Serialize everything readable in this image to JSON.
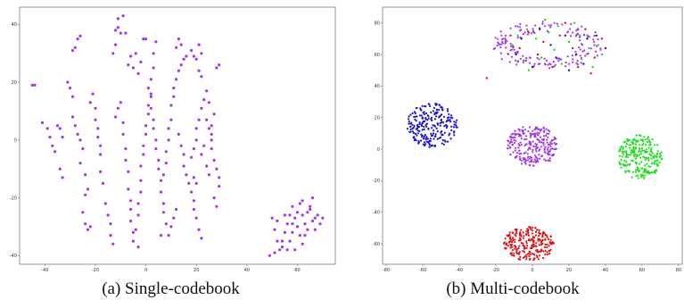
{
  "chart_data": [
    {
      "type": "scatter",
      "title": "",
      "caption": "(a) Single-codebook",
      "xlim": [
        -50,
        75
      ],
      "ylim": [
        -43,
        46
      ],
      "xticks": [
        -40,
        -20,
        0,
        20,
        40,
        60
      ],
      "yticks": [
        -40,
        -20,
        0,
        20,
        40
      ],
      "grid": false,
      "series": [
        {
          "color": "#a335f0",
          "points": [
            [
              -45,
              19
            ],
            [
              -44,
              19
            ],
            [
              -41,
              6
            ],
            [
              -39,
              4
            ],
            [
              -38,
              1
            ],
            [
              -37,
              -2
            ],
            [
              -35,
              5
            ],
            [
              -36,
              -4
            ],
            [
              -34,
              -10
            ],
            [
              -33,
              -13
            ],
            [
              -34,
              4
            ],
            [
              -33,
              1
            ],
            [
              -31,
              20
            ],
            [
              -30,
              18
            ],
            [
              -29,
              15
            ],
            [
              -29,
              31
            ],
            [
              -28,
              32
            ],
            [
              -27,
              35
            ],
            [
              -26,
              36
            ],
            [
              -29,
              8
            ],
            [
              -28,
              5
            ],
            [
              -27,
              2
            ],
            [
              -26,
              0
            ],
            [
              -25,
              -3
            ],
            [
              -26,
              -8
            ],
            [
              -24,
              -12
            ],
            [
              -23,
              -17
            ],
            [
              -24,
              -19
            ],
            [
              -25,
              -25
            ],
            [
              -24,
              -29
            ],
            [
              -23,
              -31
            ],
            [
              -22,
              -30
            ],
            [
              -22,
              13
            ],
            [
              -21,
              16
            ],
            [
              -20,
              11
            ],
            [
              -20,
              7
            ],
            [
              -19,
              4
            ],
            [
              -19,
              1
            ],
            [
              -18,
              -2
            ],
            [
              -18,
              -5
            ],
            [
              -18,
              -11
            ],
            [
              -17,
              -15
            ],
            [
              -16,
              -22
            ],
            [
              -15,
              -26
            ],
            [
              -14,
              -29
            ],
            [
              -14,
              -33
            ],
            [
              -13,
              -36
            ],
            [
              -13,
              30
            ],
            [
              -12,
              33
            ],
            [
              -12,
              38
            ],
            [
              -11,
              42
            ],
            [
              -11,
              39
            ],
            [
              -10,
              37
            ],
            [
              -9,
              43
            ],
            [
              -8,
              37
            ],
            [
              -12,
              8
            ],
            [
              -11,
              11
            ],
            [
              -10,
              13
            ],
            [
              -9,
              6
            ],
            [
              -9,
              2
            ],
            [
              -8,
              -3
            ],
            [
              -8,
              -7
            ],
            [
              -7,
              -11
            ],
            [
              -7,
              -17
            ],
            [
              -6,
              -21
            ],
            [
              -6,
              -24
            ],
            [
              -6,
              -28
            ],
            [
              -5,
              -32
            ],
            [
              -5,
              -35
            ],
            [
              -3,
              -37
            ],
            [
              -4,
              -31
            ],
            [
              -3,
              -26
            ],
            [
              -3,
              -22
            ],
            [
              -2,
              -18
            ],
            [
              -2,
              -14
            ],
            [
              -2,
              -9
            ],
            [
              -1,
              -5
            ],
            [
              -1,
              -2
            ],
            [
              0,
              2
            ],
            [
              0,
              5
            ],
            [
              1,
              9
            ],
            [
              1,
              12
            ],
            [
              2,
              16
            ],
            [
              2,
              21
            ],
            [
              3,
              25
            ],
            [
              3,
              30
            ],
            [
              4,
              34
            ],
            [
              -7,
              26
            ],
            [
              -6,
              29
            ],
            [
              -5,
              25
            ],
            [
              -4,
              30
            ],
            [
              -3,
              23
            ],
            [
              -2,
              27
            ],
            [
              -1,
              35
            ],
            [
              0,
              35
            ],
            [
              1,
              18
            ],
            [
              2,
              15
            ],
            [
              2,
              11
            ],
            [
              3,
              7
            ],
            [
              3,
              4
            ],
            [
              4,
              0
            ],
            [
              4,
              -3
            ],
            [
              5,
              -7
            ],
            [
              5,
              -10
            ],
            [
              6,
              -14
            ],
            [
              6,
              -18
            ],
            [
              7,
              -22
            ],
            [
              7,
              -25
            ],
            [
              8,
              -29
            ],
            [
              9,
              -33
            ],
            [
              10,
              -30
            ],
            [
              11,
              -27
            ],
            [
              12,
              -24
            ],
            [
              6,
              -33
            ],
            [
              7,
              -12
            ],
            [
              8,
              -8
            ],
            [
              8,
              -4
            ],
            [
              9,
              0
            ],
            [
              9,
              4
            ],
            [
              10,
              7
            ],
            [
              10,
              12
            ],
            [
              11,
              15
            ],
            [
              11,
              18
            ],
            [
              12,
              21
            ],
            [
              13,
              24
            ],
            [
              14,
              26
            ],
            [
              15,
              28
            ],
            [
              16,
              29
            ],
            [
              12,
              32
            ],
            [
              13,
              35
            ],
            [
              14,
              33
            ],
            [
              18,
              31
            ],
            [
              19,
              29
            ],
            [
              20,
              28
            ],
            [
              21,
              33
            ],
            [
              22,
              30
            ],
            [
              21,
              24
            ],
            [
              22,
              22
            ],
            [
              13,
              2
            ],
            [
              14,
              -2
            ],
            [
              15,
              -5
            ],
            [
              15,
              -9
            ],
            [
              16,
              -12
            ],
            [
              17,
              -15
            ],
            [
              18,
              -18
            ],
            [
              19,
              -21
            ],
            [
              19,
              -24
            ],
            [
              20,
              -27
            ],
            [
              21,
              -31
            ],
            [
              22,
              -34
            ],
            [
              18,
              -6
            ],
            [
              19,
              -3
            ],
            [
              20,
              0
            ],
            [
              20,
              4
            ],
            [
              21,
              7
            ],
            [
              22,
              11
            ],
            [
              23,
              14
            ],
            [
              24,
              17
            ],
            [
              25,
              13
            ],
            [
              24,
              7
            ],
            [
              25,
              4
            ],
            [
              26,
              0
            ],
            [
              26,
              -3
            ],
            [
              27,
              -7
            ],
            [
              28,
              -10
            ],
            [
              29,
              -13
            ],
            [
              29,
              -16
            ],
            [
              19,
              -13
            ],
            [
              20,
              -15
            ],
            [
              22,
              -5
            ],
            [
              23,
              -2
            ],
            [
              24,
              -9
            ],
            [
              25,
              -12
            ],
            [
              26,
              2
            ],
            [
              26,
              5
            ],
            [
              27,
              9
            ],
            [
              28,
              25
            ],
            [
              29,
              26
            ],
            [
              27,
              -20
            ],
            [
              28,
              -23
            ],
            [
              50,
              -27
            ],
            [
              51,
              -31
            ],
            [
              52,
              -35
            ],
            [
              53,
              -38
            ],
            [
              54,
              -35
            ],
            [
              55,
              -32
            ],
            [
              56,
              -29
            ],
            [
              57,
              -26
            ],
            [
              58,
              -23
            ],
            [
              59,
              -27
            ],
            [
              60,
              -30
            ],
            [
              61,
              -33
            ],
            [
              62,
              -36
            ],
            [
              62,
              -26
            ],
            [
              63,
              -29
            ],
            [
              64,
              -25
            ],
            [
              65,
              -23
            ],
            [
              66,
              -28
            ],
            [
              67,
              -27
            ],
            [
              68,
              -26
            ],
            [
              69,
              -29
            ],
            [
              70,
              -27
            ],
            [
              56,
              -38
            ],
            [
              57,
              -35
            ],
            [
              58,
              -32
            ],
            [
              60,
              -25
            ],
            [
              61,
              -22
            ],
            [
              62,
              -21
            ],
            [
              64,
              -31
            ],
            [
              65,
              -24
            ],
            [
              66,
              -20
            ],
            [
              59,
              -38
            ],
            [
              51,
              -39
            ],
            [
              52,
              -28
            ],
            [
              55,
              -26
            ],
            [
              58,
              -29
            ],
            [
              63,
              -33
            ],
            [
              67,
              -31
            ],
            [
              54,
              -37
            ],
            [
              49,
              -40
            ]
          ]
        }
      ]
    },
    {
      "type": "scatter",
      "title": "",
      "caption": "(b) Multi-codebook",
      "xlim": [
        -82,
        82
      ],
      "ylim": [
        -73,
        90
      ],
      "xticks": [
        -80,
        -60,
        -40,
        -20,
        0,
        20,
        40,
        60,
        80
      ],
      "yticks": [
        -60,
        -40,
        -20,
        0,
        20,
        40,
        60,
        80
      ],
      "grid": false,
      "clusters": [
        {
          "color": "#1212d6",
          "cx": -55,
          "cy": 15,
          "rx": 14,
          "ry": 14,
          "n": 230,
          "seed": 11
        },
        {
          "color": "#a335f0",
          "cx": 0,
          "cy": 2,
          "rx": 14,
          "ry": 13,
          "n": 250,
          "seed": 23
        },
        {
          "color": "#18e018",
          "cx": 59,
          "cy": -5,
          "rx": 12,
          "ry": 14,
          "n": 230,
          "seed": 37
        },
        {
          "color": "#e01010",
          "cx": -2,
          "cy": -60,
          "rx": 14,
          "ry": 11,
          "n": 230,
          "seed": 53
        },
        {
          "color": "#a335f0",
          "cx": 8,
          "cy": 66,
          "rx": 32,
          "ry": 10,
          "n": 170,
          "seed": 71,
          "ring": true
        }
      ],
      "accent_points": [
        {
          "color": "#18e018",
          "points": [
            [
              -8,
              72
            ],
            [
              -3,
              76
            ],
            [
              2,
              70
            ],
            [
              9,
              74
            ],
            [
              14,
              78
            ],
            [
              20,
              68
            ],
            [
              26,
              72
            ],
            [
              31,
              64
            ],
            [
              -5,
              56
            ],
            [
              5,
              58
            ],
            [
              16,
              54
            ],
            [
              27,
              57
            ],
            [
              36,
              66
            ],
            [
              -11,
              66
            ],
            [
              23,
              80
            ],
            [
              12,
              63
            ],
            [
              -2,
              50
            ],
            [
              33,
              52
            ],
            [
              38,
              60
            ],
            [
              7,
              82
            ]
          ]
        },
        {
          "color": "#1212d6",
          "points": [
            [
              -6,
              70
            ],
            [
              4,
              76
            ],
            [
              10,
              66
            ],
            [
              18,
              72
            ],
            [
              24,
              60
            ],
            [
              30,
              70
            ],
            [
              35,
              72
            ],
            [
              0,
              52
            ],
            [
              20,
              50
            ],
            [
              13,
              58
            ],
            [
              -9,
              60
            ],
            [
              28,
              54
            ],
            [
              40,
              64
            ]
          ]
        },
        {
          "color": "#e01010",
          "points": [
            [
              -2,
              74
            ],
            [
              6,
              68
            ],
            [
              15,
              72
            ],
            [
              22,
              64
            ],
            [
              29,
              76
            ],
            [
              34,
              58
            ],
            [
              -7,
              64
            ],
            [
              11,
              52
            ],
            [
              25,
              52
            ],
            [
              38,
              70
            ],
            [
              18,
              80
            ],
            [
              -12,
              72
            ],
            [
              3,
              60
            ],
            [
              32,
              48
            ],
            [
              -25,
              45
            ]
          ]
        }
      ]
    }
  ]
}
